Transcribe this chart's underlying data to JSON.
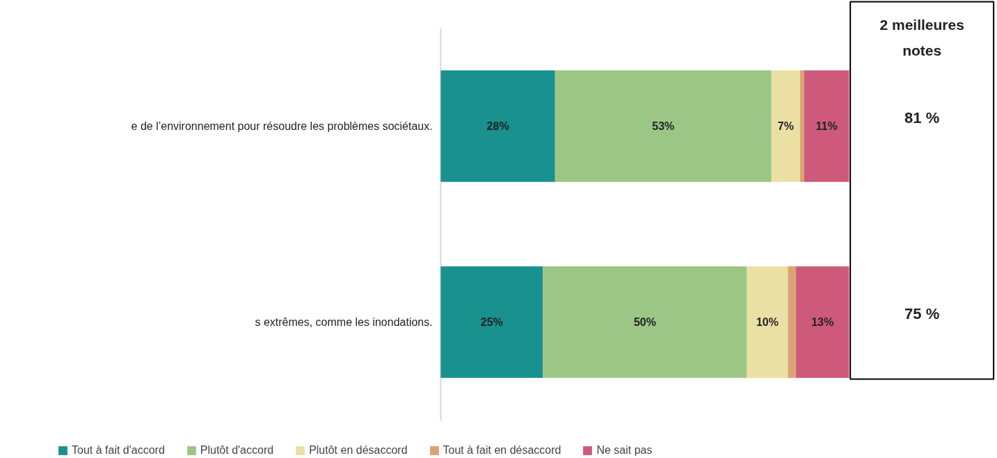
{
  "chart_data": {
    "type": "bar",
    "orientation": "horizontal",
    "stacked": true,
    "categories": [
      "e de l’environnement pour résoudre les problèmes sociétaux.",
      "s extrêmes, comme les inondations."
    ],
    "xlim": [
      0,
      100
    ],
    "tick_labels": "y",
    "grid": false,
    "legend": "bottom",
    "series": [
      {
        "name": "Tout à fait d'accord",
        "color": "#19918f",
        "values": [
          28,
          25
        ],
        "value_labels": [
          "28%",
          "25%"
        ]
      },
      {
        "name": "Plutôt d'accord",
        "color": "#9cc686",
        "values": [
          53,
          50
        ],
        "value_labels": [
          "53%",
          "50%"
        ]
      },
      {
        "name": "Plutôt en désaccord",
        "color": "#ebe0a3",
        "values": [
          7,
          10
        ],
        "value_labels": [
          "7%",
          "10%"
        ]
      },
      {
        "name": "Tout à fait en désaccord",
        "color": "#d9a473",
        "values": [
          1,
          2
        ],
        "value_labels": [
          null,
          null
        ]
      },
      {
        "name": "Ne sait pas",
        "color": "#cd5a7b",
        "values": [
          11,
          13
        ],
        "value_labels": [
          "11%",
          "13%"
        ]
      }
    ],
    "annotations": [
      {
        "text": "2 meilleures notes"
      },
      "81 %",
      "75 %"
    ]
  }
}
